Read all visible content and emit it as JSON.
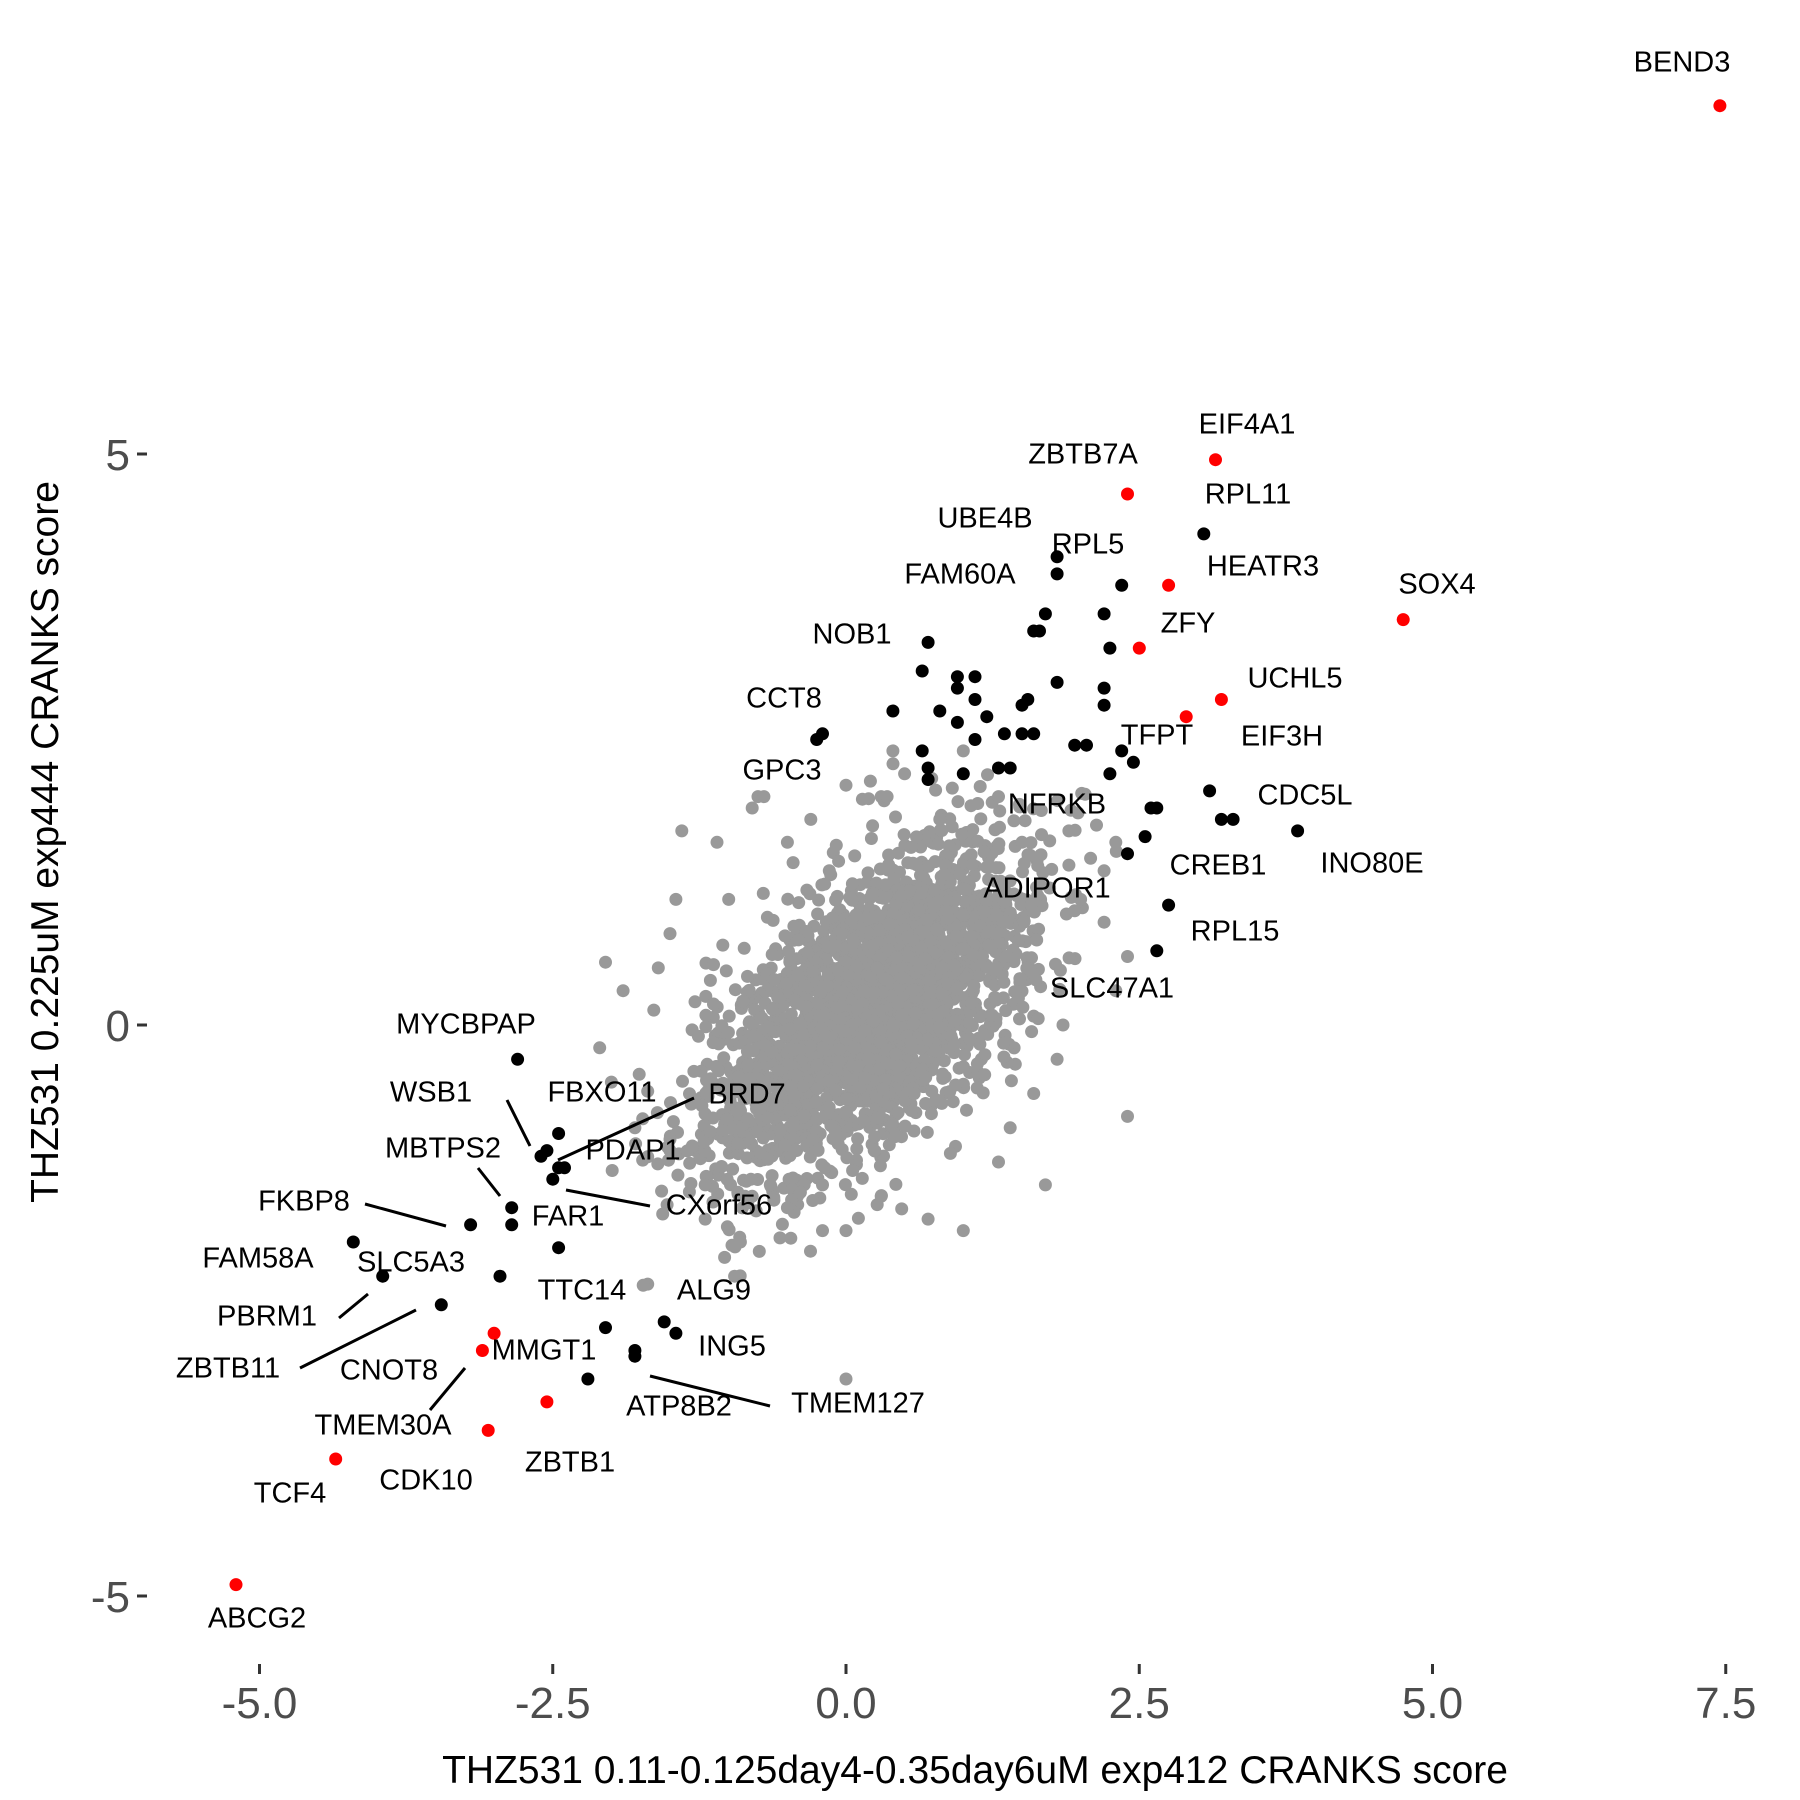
{
  "chart_data": {
    "type": "scatter",
    "title": "",
    "xlabel": "THZ531 0.11-0.125day4-0.35day6uM exp412 CRANKS score",
    "ylabel": "THZ531 0.225uM exp444 CRANKS score",
    "xlim": [
      -5.5,
      7.75
    ],
    "ylim": [
      -5.4,
      8.0
    ],
    "x_ticks": [
      -5.0,
      -2.5,
      0.0,
      2.5,
      5.0,
      7.5
    ],
    "x_tick_labels": [
      "-5.0",
      "-2.5",
      "0.0",
      "2.5",
      "5.0",
      "7.5"
    ],
    "y_ticks": [
      -5,
      0,
      5
    ],
    "y_tick_labels": [
      "-5",
      "0",
      "5"
    ],
    "grid": false,
    "colors": {
      "background": "#999999",
      "hit": "#000000",
      "highlight": "#ff0000",
      "tick": "#4d4d4d"
    },
    "background_cloud": {
      "description_color": "#999999",
      "points": [
        [
          -1.5,
          0.8
        ],
        [
          -1.45,
          1.1
        ],
        [
          -1.0,
          1.1
        ],
        [
          -1.1,
          1.6
        ],
        [
          -1.4,
          1.7
        ],
        [
          -0.8,
          1.9
        ],
        [
          -0.5,
          1.6
        ],
        [
          -0.3,
          1.8
        ],
        [
          0.0,
          2.1
        ],
        [
          0.3,
          2.0
        ],
        [
          0.5,
          2.2
        ],
        [
          0.8,
          1.8
        ],
        [
          0.4,
          2.4
        ],
        [
          1.0,
          2.4
        ],
        [
          1.3,
          2.0
        ],
        [
          1.5,
          1.6
        ],
        [
          1.9,
          1.4
        ],
        [
          2.0,
          1.1
        ],
        [
          2.2,
          0.9
        ],
        [
          2.4,
          0.6
        ],
        [
          2.3,
          0.3
        ],
        [
          1.85,
          0.0
        ],
        [
          1.8,
          -0.3
        ],
        [
          1.6,
          -0.6
        ],
        [
          1.4,
          -0.9
        ],
        [
          1.7,
          -1.4
        ],
        [
          1.3,
          -1.2
        ],
        [
          1.0,
          -1.8
        ],
        [
          0.7,
          -1.7
        ],
        [
          0.3,
          -1.5
        ],
        [
          0.0,
          -1.8
        ],
        [
          -0.2,
          -1.4
        ],
        [
          -0.5,
          -1.6
        ],
        [
          -0.8,
          -1.5
        ],
        [
          -0.9,
          -1.9
        ],
        [
          -1.2,
          -1.4
        ],
        [
          -1.5,
          -1.1
        ],
        [
          -1.8,
          -0.9
        ],
        [
          -2.0,
          -0.5
        ],
        [
          -2.1,
          -0.2
        ],
        [
          -1.9,
          0.3
        ],
        [
          -2.05,
          0.55
        ],
        [
          -1.6,
          0.5
        ],
        [
          -1.5,
          -1.0
        ],
        [
          -1.2,
          -1.7
        ],
        [
          -0.95,
          -2.2
        ],
        [
          0.0,
          -3.1
        ],
        [
          -0.2,
          -1.8
        ],
        [
          2.3,
          1.6
        ],
        [
          2.4,
          -0.8
        ],
        [
          0.35,
          2.0
        ],
        [
          -1.05,
          0.7
        ],
        [
          1.9,
          1.7
        ],
        [
          -0.75,
          2.0
        ],
        [
          2.2,
          1.35
        ],
        [
          1.95,
          1.0
        ]
      ]
    },
    "points": [
      {
        "gene": "BEND3",
        "x": 7.45,
        "y": 8.05,
        "color": "red",
        "label": true
      },
      {
        "gene": "EIF4A1",
        "x": 3.15,
        "y": 4.95,
        "color": "red",
        "label": true
      },
      {
        "gene": "ZBTB7A",
        "x": 2.4,
        "y": 4.65,
        "color": "red",
        "label": true
      },
      {
        "gene": "RPL11",
        "x": 3.05,
        "y": 4.3,
        "color": "black",
        "label": true
      },
      {
        "gene": "UBE4B",
        "x": 1.8,
        "y": 4.1,
        "color": "black",
        "label": true
      },
      {
        "gene": "RPL5",
        "x": 2.35,
        "y": 3.85,
        "color": "black",
        "label": true
      },
      {
        "gene": "HEATR3",
        "x": 2.75,
        "y": 3.85,
        "color": "red",
        "label": true
      },
      {
        "gene": "FAM60A",
        "x": 1.8,
        "y": 3.95,
        "color": "black",
        "label": true
      },
      {
        "gene": "SOX4",
        "x": 4.75,
        "y": 3.55,
        "color": "red",
        "label": true
      },
      {
        "gene": "ZFY",
        "x": 2.5,
        "y": 3.3,
        "color": "red",
        "label": true
      },
      {
        "gene": "NOB1",
        "x": 0.7,
        "y": 3.35,
        "color": "black",
        "label": true
      },
      {
        "gene": "UCHL5",
        "x": 3.2,
        "y": 2.85,
        "color": "red",
        "label": true
      },
      {
        "gene": "CCT8",
        "x": -0.2,
        "y": 2.55,
        "color": "black",
        "label": true
      },
      {
        "gene": "TFPT",
        "x": 2.45,
        "y": 2.3,
        "color": "black",
        "label": true
      },
      {
        "gene": "EIF3H",
        "x": 2.9,
        "y": 2.7,
        "color": "red",
        "label": true
      },
      {
        "gene": "GPC3",
        "x": -0.7,
        "y": 2.0,
        "color": "gray",
        "label": true
      },
      {
        "gene": "NFRKB",
        "x": 2.6,
        "y": 1.9,
        "color": "black",
        "label": true
      },
      {
        "gene": "CDC5L",
        "x": 3.1,
        "y": 2.05,
        "color": "black",
        "label": true
      },
      {
        "gene": "INO80E",
        "x": 3.85,
        "y": 1.7,
        "color": "black",
        "label": true
      },
      {
        "gene": "CREB1",
        "x": 2.4,
        "y": 1.5,
        "color": "black",
        "label": true
      },
      {
        "gene": "ADIPOR1",
        "x": 2.55,
        "y": 1.65,
        "color": "black",
        "label": true
      },
      {
        "gene": "RPL15",
        "x": 2.75,
        "y": 1.05,
        "color": "black",
        "label": true
      },
      {
        "gene": "SLC47A1",
        "x": 2.65,
        "y": 0.65,
        "color": "black",
        "label": true
      },
      {
        "gene": "MYCBPAP",
        "x": -2.8,
        "y": -0.3,
        "color": "black",
        "label": true
      },
      {
        "gene": "WSB1",
        "x": -2.6,
        "y": -1.15,
        "color": "black",
        "label": true
      },
      {
        "gene": "FBXO11",
        "x": -2.45,
        "y": -0.95,
        "color": "black",
        "label": true
      },
      {
        "gene": "BRD7",
        "x": -2.55,
        "y": -1.1,
        "color": "black",
        "label": true
      },
      {
        "gene": "PDAP1",
        "x": -2.4,
        "y": -1.25,
        "color": "black",
        "label": true
      },
      {
        "gene": "MBTPS2",
        "x": -2.85,
        "y": -1.6,
        "color": "black",
        "label": true
      },
      {
        "gene": "CXorf56",
        "x": -2.5,
        "y": -1.35,
        "color": "black",
        "label": true
      },
      {
        "gene": "FAR1",
        "x": -2.85,
        "y": -1.75,
        "color": "black",
        "label": true
      },
      {
        "gene": "FKBP8",
        "x": -3.2,
        "y": -1.75,
        "color": "black",
        "label": true
      },
      {
        "gene": "FAM58A",
        "x": -4.2,
        "y": -1.9,
        "color": "black",
        "label": true
      },
      {
        "gene": "SLC5A3",
        "x": -2.95,
        "y": -2.2,
        "color": "black",
        "label": true
      },
      {
        "gene": "TTC14",
        "x": -2.45,
        "y": -1.95,
        "color": "black",
        "label": true
      },
      {
        "gene": "ALG9",
        "x": -1.55,
        "y": -2.6,
        "color": "black",
        "label": true
      },
      {
        "gene": "PBRM1",
        "x": -3.95,
        "y": -2.2,
        "color": "black",
        "label": true
      },
      {
        "gene": "ZBTB11",
        "x": -3.45,
        "y": -2.45,
        "color": "black",
        "label": true
      },
      {
        "gene": "ING5",
        "x": -1.45,
        "y": -2.7,
        "color": "black",
        "label": true
      },
      {
        "gene": "MMGT1",
        "x": -2.05,
        "y": -2.65,
        "color": "black",
        "label": true
      },
      {
        "gene": "CNOT8",
        "x": -3.0,
        "y": -2.7,
        "color": "red",
        "label": true
      },
      {
        "gene": "TMEM127",
        "x": -1.8,
        "y": -2.9,
        "color": "black",
        "label": true
      },
      {
        "gene": "TMEM30A",
        "x": -3.1,
        "y": -2.85,
        "color": "red",
        "label": true
      },
      {
        "gene": "ATP8B2",
        "x": -2.2,
        "y": -3.1,
        "color": "black",
        "label": true
      },
      {
        "gene": "ZBTB1",
        "x": -2.55,
        "y": -3.3,
        "color": "red",
        "label": true
      },
      {
        "gene": "CDK10",
        "x": -3.05,
        "y": -3.55,
        "color": "red",
        "label": true
      },
      {
        "gene": "TCF4",
        "x": -4.35,
        "y": -3.8,
        "color": "red",
        "label": true
      },
      {
        "gene": "ABCG2",
        "x": -5.2,
        "y": -4.9,
        "color": "red",
        "label": true
      },
      {
        "x": 1.7,
        "y": 3.6,
        "color": "black"
      },
      {
        "x": 1.65,
        "y": 3.45,
        "color": "black"
      },
      {
        "x": 2.2,
        "y": 3.6,
        "color": "black"
      },
      {
        "x": 2.25,
        "y": 3.3,
        "color": "black"
      },
      {
        "x": 1.6,
        "y": 3.45,
        "color": "black"
      },
      {
        "x": 0.65,
        "y": 3.1,
        "color": "black"
      },
      {
        "x": 0.95,
        "y": 3.05,
        "color": "black"
      },
      {
        "x": 1.1,
        "y": 3.05,
        "color": "black"
      },
      {
        "x": 0.95,
        "y": 2.95,
        "color": "black"
      },
      {
        "x": 1.1,
        "y": 2.85,
        "color": "black"
      },
      {
        "x": 1.8,
        "y": 3.0,
        "color": "black"
      },
      {
        "x": 2.2,
        "y": 2.95,
        "color": "black"
      },
      {
        "x": 2.2,
        "y": 2.8,
        "color": "black"
      },
      {
        "x": 0.4,
        "y": 2.75,
        "color": "black"
      },
      {
        "x": 0.8,
        "y": 2.75,
        "color": "black"
      },
      {
        "x": 1.2,
        "y": 2.7,
        "color": "black"
      },
      {
        "x": 0.95,
        "y": 2.65,
        "color": "black"
      },
      {
        "x": 1.5,
        "y": 2.8,
        "color": "black"
      },
      {
        "x": 1.55,
        "y": 2.85,
        "color": "black"
      },
      {
        "x": 1.5,
        "y": 2.55,
        "color": "black"
      },
      {
        "x": 1.35,
        "y": 2.55,
        "color": "black"
      },
      {
        "x": 1.6,
        "y": 2.55,
        "color": "black"
      },
      {
        "x": 1.1,
        "y": 2.5,
        "color": "black"
      },
      {
        "x": 1.95,
        "y": 2.45,
        "color": "black"
      },
      {
        "x": 2.05,
        "y": 2.45,
        "color": "black"
      },
      {
        "x": 0.65,
        "y": 2.4,
        "color": "black"
      },
      {
        "x": 0.7,
        "y": 2.25,
        "color": "black"
      },
      {
        "x": 1.3,
        "y": 2.25,
        "color": "black"
      },
      {
        "x": 1.4,
        "y": 2.25,
        "color": "black"
      },
      {
        "x": 1.0,
        "y": 2.2,
        "color": "black"
      },
      {
        "x": 0.7,
        "y": 2.15,
        "color": "black"
      },
      {
        "x": 2.25,
        "y": 2.2,
        "color": "black"
      },
      {
        "x": 2.35,
        "y": 2.4,
        "color": "black"
      },
      {
        "x": 2.65,
        "y": 1.9,
        "color": "black"
      },
      {
        "x": 3.2,
        "y": 1.8,
        "color": "black"
      },
      {
        "x": 3.3,
        "y": 1.8,
        "color": "black"
      },
      {
        "x": -0.25,
        "y": 2.5,
        "color": "black"
      },
      {
        "x": -2.45,
        "y": -1.25,
        "color": "black"
      },
      {
        "x": -1.8,
        "y": -2.85,
        "color": "black"
      }
    ]
  }
}
